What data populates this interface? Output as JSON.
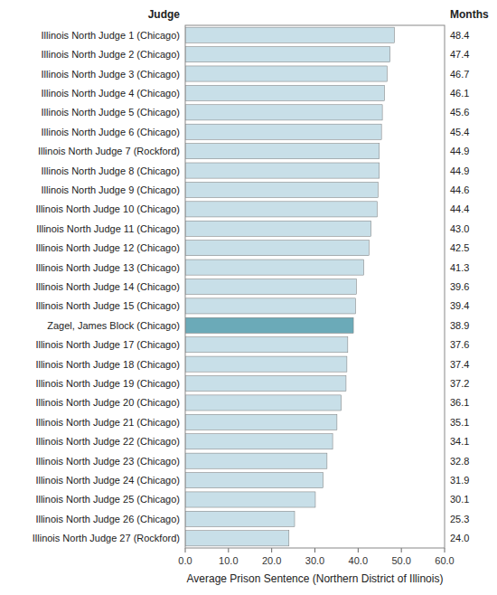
{
  "chart_data": {
    "type": "bar",
    "orientation": "horizontal",
    "xlabel": "Average Prison Sentence (Northern District of Illinois)",
    "ylabel": "Judge",
    "annotations": [
      "Months"
    ],
    "categories": [
      "Illinois North Judge 1 (Chicago)",
      "Illinois North Judge 2 (Chicago)",
      "Illinois North Judge 3 (Chicago)",
      "Illinois North Judge 4 (Chicago)",
      "Illinois North Judge 5 (Chicago)",
      "Illinois North Judge 6 (Chicago)",
      "Illinois North Judge 7 (Rockford)",
      "Illinois North Judge 8 (Chicago)",
      "Illinois North Judge 9 (Chicago)",
      "Illinois North Judge 10 (Chicago)",
      "Illinois North Judge 11 (Chicago)",
      "Illinois North Judge 12 (Chicago)",
      "Illinois North Judge 13 (Chicago)",
      "Illinois North Judge 14 (Chicago)",
      "Illinois North Judge 15 (Chicago)",
      "Zagel, James Block (Chicago)",
      "Illinois North Judge 17 (Chicago)",
      "Illinois North Judge 18 (Chicago)",
      "Illinois North Judge 19 (Chicago)",
      "Illinois North Judge 20 (Chicago)",
      "Illinois North Judge 21 (Chicago)",
      "Illinois North Judge 22 (Chicago)",
      "Illinois North Judge 23 (Chicago)",
      "Illinois North Judge 24 (Chicago)",
      "Illinois North Judge 25 (Chicago)",
      "Illinois North Judge 26 (Chicago)",
      "Illinois North Judge 27 (Rockford)"
    ],
    "values": [
      48.4,
      47.4,
      46.7,
      46.1,
      45.6,
      45.4,
      44.9,
      44.9,
      44.6,
      44.4,
      43.0,
      42.5,
      41.3,
      39.6,
      39.4,
      38.9,
      37.6,
      37.4,
      37.2,
      36.1,
      35.1,
      34.1,
      32.8,
      31.9,
      30.1,
      25.3,
      24.0
    ],
    "value_labels": [
      "48.4",
      "47.4",
      "46.7",
      "46.1",
      "45.6",
      "45.4",
      "44.9",
      "44.9",
      "44.6",
      "44.4",
      "43.0",
      "42.5",
      "41.3",
      "39.6",
      "39.4",
      "38.9",
      "37.6",
      "37.4",
      "37.2",
      "36.1",
      "35.1",
      "34.1",
      "32.8",
      "31.9",
      "30.1",
      "25.3",
      "24.0"
    ],
    "data_labels": true,
    "colors": [
      "#c8dfe8",
      "#c8dfe8",
      "#c8dfe8",
      "#c8dfe8",
      "#c8dfe8",
      "#c8dfe8",
      "#c8dfe8",
      "#c8dfe8",
      "#c8dfe8",
      "#c8dfe8",
      "#c8dfe8",
      "#c8dfe8",
      "#c8dfe8",
      "#c8dfe8",
      "#c8dfe8",
      "#6baab8",
      "#c8dfe8",
      "#c8dfe8",
      "#c8dfe8",
      "#c8dfe8",
      "#c8dfe8",
      "#c8dfe8",
      "#c8dfe8",
      "#c8dfe8",
      "#c8dfe8",
      "#c8dfe8",
      "#c8dfe8"
    ],
    "xlim": [
      0,
      60
    ],
    "xticks": [
      {
        "value": 0,
        "label": "0.0"
      },
      {
        "value": 10,
        "label": "10.0"
      },
      {
        "value": 20,
        "label": "20.0"
      },
      {
        "value": 30,
        "label": "30.0"
      },
      {
        "value": 40,
        "label": "40.0"
      },
      {
        "value": 50,
        "label": "50.0"
      },
      {
        "value": 60,
        "label": "60.0"
      }
    ],
    "grid": false
  }
}
